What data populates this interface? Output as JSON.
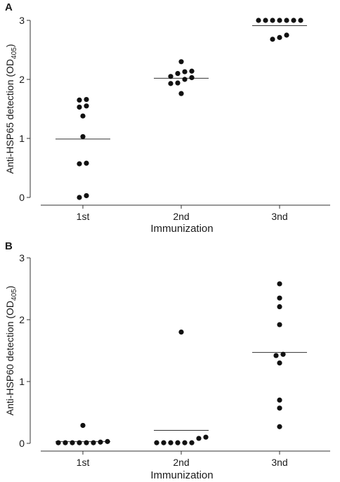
{
  "chart_data": [
    {
      "type": "scatter",
      "panel_label": "A",
      "xlabel": "Immunization",
      "ylabel": "Anti-HSP65 detection (OD",
      "ylabel_sub": "405",
      "ylabel_end": ")",
      "categories": [
        "1st",
        "2nd",
        "3nd"
      ],
      "ylim": [
        0,
        3
      ],
      "yticks": [
        "0",
        "1",
        "2",
        "3"
      ],
      "points": [
        [
          0.0,
          0.03,
          0.57,
          0.58,
          1.03,
          1.38,
          1.53,
          1.55,
          1.65,
          1.66
        ],
        [
          1.76,
          1.93,
          1.94,
          2.0,
          2.03,
          2.05,
          2.1,
          2.13,
          2.14,
          2.3
        ],
        [
          2.68,
          2.71,
          2.75,
          3.0,
          3.0,
          3.0,
          3.0,
          3.0,
          3.0,
          3.0
        ]
      ],
      "medians": [
        0.99,
        2.02,
        2.91
      ]
    },
    {
      "type": "scatter",
      "panel_label": "B",
      "xlabel": "Immunization",
      "ylabel": "Anti-HSP60 detection (OD",
      "ylabel_sub": "405",
      "ylabel_end": ")",
      "categories": [
        "1st",
        "2nd",
        "3nd"
      ],
      "ylim": [
        0,
        3
      ],
      "yticks": [
        "0",
        "1",
        "2",
        "3"
      ],
      "points": [
        [
          0.01,
          0.01,
          0.01,
          0.01,
          0.01,
          0.01,
          0.02,
          0.03,
          0.29
        ],
        [
          0.01,
          0.01,
          0.01,
          0.01,
          0.01,
          0.01,
          0.08,
          0.1,
          1.8
        ],
        [
          0.27,
          0.57,
          0.7,
          1.3,
          1.42,
          1.44,
          1.92,
          2.21,
          2.35,
          2.58
        ]
      ],
      "medians": [
        0.03,
        0.21,
        1.47
      ]
    }
  ]
}
